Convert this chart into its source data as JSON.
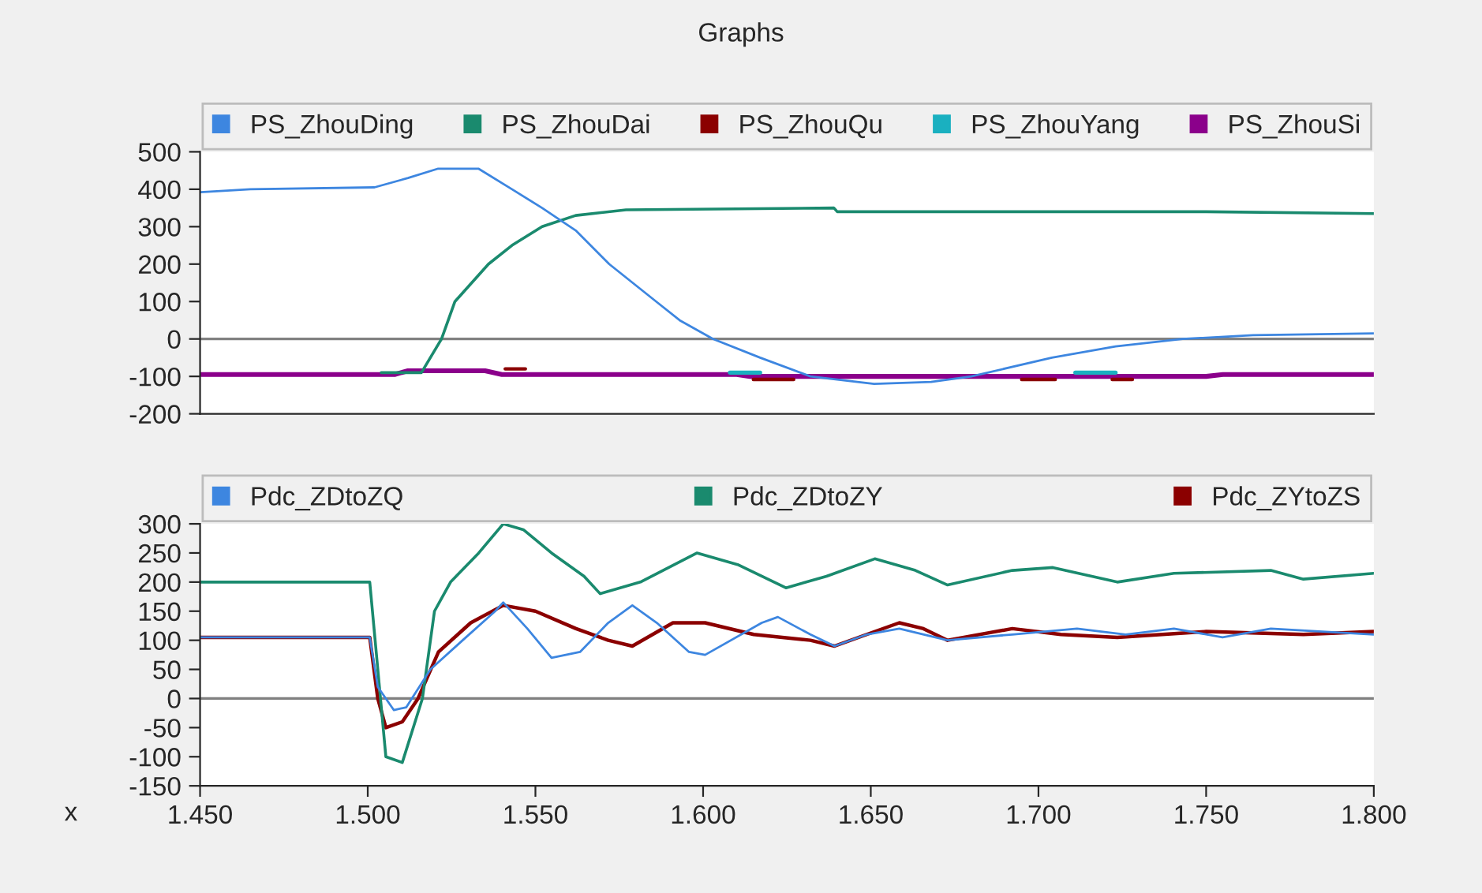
{
  "chart_data": [
    {
      "type": "line",
      "title": "Graphs",
      "legend": "top",
      "grid": false,
      "tick_labels": "y",
      "xlim": [
        1.45,
        1.8
      ],
      "ylim": [
        -200,
        500
      ],
      "yticks": [
        -200,
        -100,
        0,
        100,
        200,
        300,
        400,
        500
      ],
      "ref_lines": [
        {
          "axis": "y",
          "value": 0,
          "color": "#808080"
        }
      ],
      "series": [
        {
          "name": "PS_ZhouDing",
          "color": "#3d86e0",
          "x": [
            1.45,
            1.465,
            1.502,
            1.512,
            1.521,
            1.533,
            1.543,
            1.552,
            1.562,
            1.572,
            1.586,
            1.593,
            1.603,
            1.617,
            1.632,
            1.651,
            1.668,
            1.68,
            1.704,
            1.723,
            1.743,
            1.764,
            1.8
          ],
          "values": [
            392,
            400,
            405,
            430,
            455,
            455,
            400,
            350,
            290,
            200,
            100,
            50,
            0,
            -50,
            -100,
            -120,
            -115,
            -100,
            -50,
            -20,
            0,
            10,
            15
          ]
        },
        {
          "name": "PS_ZhouDai",
          "color": "#1a8a6e",
          "x": [
            1.504,
            1.516,
            1.522,
            1.526,
            1.536,
            1.543,
            1.552,
            1.562,
            1.577,
            1.639,
            1.64,
            1.75,
            1.8
          ],
          "values": [
            -90,
            -90,
            0,
            100,
            200,
            250,
            300,
            330,
            345,
            350,
            340,
            340,
            335
          ]
        },
        {
          "name": "PS_ZhouQu",
          "color": "#8b0000",
          "x": [
            1.541,
            1.547,
            1.548,
            1.615,
            1.627,
            1.628,
            1.695,
            1.705,
            1.706,
            1.722,
            1.728
          ],
          "values": [
            -80,
            -80,
            null,
            -108,
            -108,
            null,
            -108,
            -108,
            null,
            -108,
            -108
          ]
        },
        {
          "name": "PS_ZhouYang",
          "color": "#1ab0c0",
          "x": [
            1.608,
            1.617,
            1.618,
            1.711,
            1.723
          ],
          "values": [
            -90,
            -90,
            null,
            -90,
            -90
          ]
        },
        {
          "name": "PS_ZhouSi",
          "color": "#8b008b",
          "x": [
            1.45,
            1.508,
            1.512,
            1.535,
            1.54,
            1.61,
            1.614,
            1.75,
            1.755,
            1.8
          ],
          "values": [
            -95,
            -95,
            -85,
            -85,
            -95,
            -95,
            -100,
            -100,
            -95,
            -95
          ]
        }
      ]
    },
    {
      "type": "line",
      "legend": "top",
      "grid": false,
      "xlabel": "x",
      "xlim": [
        1.45,
        1.8
      ],
      "xticks": [
        {
          "value": 1.45,
          "label": "1.450"
        },
        {
          "value": 1.5,
          "label": "1.500"
        },
        {
          "value": 1.55,
          "label": "1.550"
        },
        {
          "value": 1.6,
          "label": "1.600"
        },
        {
          "value": 1.65,
          "label": "1.650"
        },
        {
          "value": 1.7,
          "label": "1.700"
        },
        {
          "value": 1.75,
          "label": "1.750"
        },
        {
          "value": 1.8,
          "label": "1.800"
        }
      ],
      "ylim": [
        -150,
        300
      ],
      "yticks": [
        -150,
        -100,
        -50,
        0,
        50,
        100,
        150,
        200,
        250,
        300
      ],
      "ref_lines": [
        {
          "axis": "y",
          "value": 0,
          "color": "#808080"
        }
      ],
      "series": [
        {
          "name": "Pdc_ZDtoZQ",
          "color": "#3d86e0",
          "x": [
            1.45,
            1.5006,
            1.503,
            1.5078,
            1.5115,
            1.5187,
            1.5283,
            1.538,
            1.5404,
            1.5476,
            1.5548,
            1.5633,
            1.5717,
            1.5789,
            1.5862,
            1.5958,
            1.6006,
            1.6175,
            1.6223,
            1.632,
            1.6392,
            1.6488,
            1.6585,
            1.6729,
            1.6922,
            1.7115,
            1.726,
            1.7404,
            1.7549,
            1.7693,
            1.8
          ],
          "values": [
            105,
            105,
            20,
            -20,
            -15,
            50,
            100,
            150,
            165,
            120,
            70,
            80,
            130,
            160,
            130,
            80,
            75,
            130,
            140,
            110,
            90,
            110,
            120,
            100,
            110,
            120,
            110,
            120,
            105,
            120,
            110
          ]
        },
        {
          "name": "Pdc_ZDtoZY",
          "color": "#1a8a6e",
          "x": [
            1.45,
            1.5006,
            1.5054,
            1.5103,
            1.5163,
            1.5199,
            1.5247,
            1.5331,
            1.5404,
            1.5464,
            1.5548,
            1.5645,
            1.5693,
            1.5813,
            1.5982,
            1.6103,
            1.6247,
            1.6368,
            1.6512,
            1.6633,
            1.6729,
            1.6922,
            1.7043,
            1.7235,
            1.7404,
            1.7693,
            1.779,
            1.8
          ],
          "values": [
            200,
            200,
            -100,
            -110,
            0,
            150,
            200,
            250,
            300,
            290,
            250,
            210,
            180,
            200,
            250,
            230,
            190,
            210,
            240,
            220,
            195,
            220,
            225,
            200,
            215,
            220,
            205,
            215
          ]
        },
        {
          "name": "Pdc_ZYtoZS",
          "color": "#8b0000",
          "x": [
            1.45,
            1.5006,
            1.503,
            1.5054,
            1.5103,
            1.515,
            1.5211,
            1.5307,
            1.5404,
            1.55,
            1.5621,
            1.5717,
            1.5789,
            1.591,
            1.6006,
            1.6151,
            1.632,
            1.6392,
            1.6488,
            1.6585,
            1.6657,
            1.6729,
            1.6922,
            1.7067,
            1.7235,
            1.75,
            1.779,
            1.8
          ],
          "values": [
            105,
            105,
            0,
            -50,
            -40,
            0,
            80,
            130,
            160,
            150,
            120,
            100,
            90,
            130,
            130,
            110,
            100,
            90,
            110,
            130,
            120,
            100,
            120,
            110,
            105,
            115,
            110,
            115
          ]
        }
      ]
    }
  ]
}
